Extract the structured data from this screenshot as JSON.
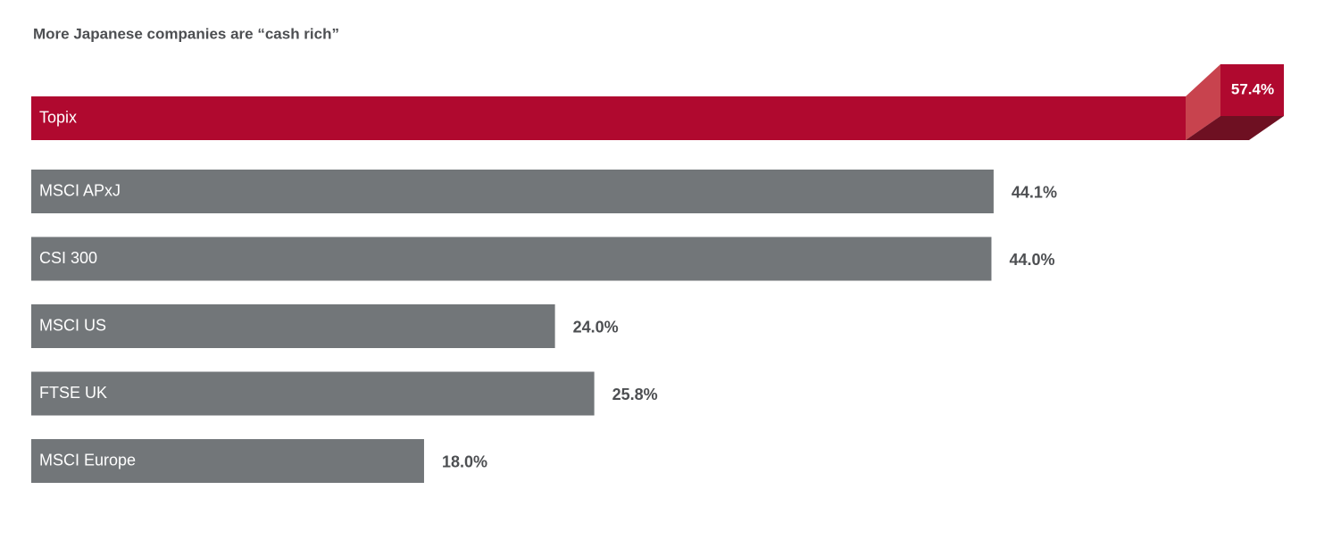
{
  "chart_data": {
    "type": "bar",
    "orientation": "horizontal",
    "title": "More Japanese companies are “cash rich”",
    "categories": [
      "Topix",
      "MSCI APxJ",
      "CSI 300",
      "MSCI US",
      "FTSE UK",
      "MSCI Europe"
    ],
    "values": [
      57.4,
      44.1,
      44.0,
      24.0,
      25.8,
      18.0
    ],
    "value_labels": [
      "57.4%",
      "44.1%",
      "44.0%",
      "24.0%",
      "25.8%",
      "18.0%"
    ],
    "colors": [
      "#b0092f",
      "#727679",
      "#727679",
      "#727679",
      "#727679",
      "#727679"
    ]
  }
}
